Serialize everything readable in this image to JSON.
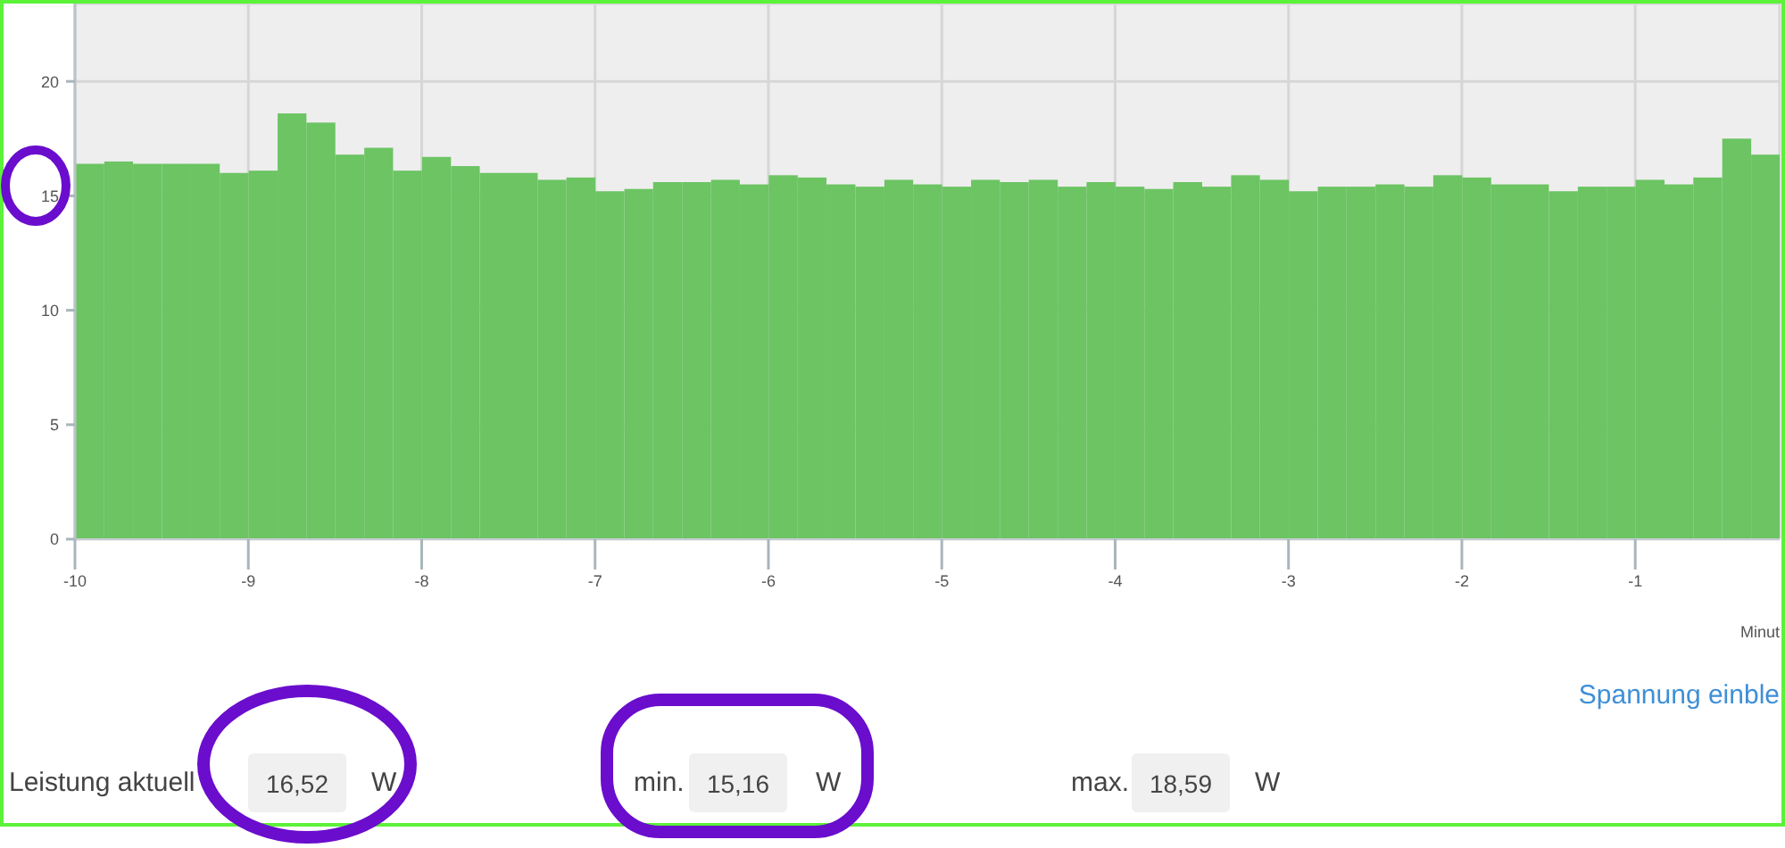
{
  "chart_data": {
    "type": "histogram",
    "bins": [
      -10,
      -9.833,
      -9.667,
      -9.5,
      -9.333,
      -9.167,
      -9,
      -8.833,
      -8.667,
      -8.5,
      -8.333,
      -8.167,
      -8,
      -7.833,
      -7.667,
      -7.5,
      -7.333,
      -7.167,
      -7,
      -6.833,
      -6.667,
      -6.5,
      -6.333,
      -6.167,
      -6,
      -5.833,
      -5.667,
      -5.5,
      -5.333,
      -5.167,
      -5,
      -4.833,
      -4.667,
      -4.5,
      -4.333,
      -4.167,
      -4,
      -3.833,
      -3.667,
      -3.5,
      -3.333,
      -3.167,
      -3,
      -2.833,
      -2.667,
      -2.5,
      -2.333,
      -2.167,
      -2,
      -1.833,
      -1.667,
      -1.5,
      -1.333,
      -1.167,
      -1,
      -0.833,
      -0.667,
      -0.5,
      -0.333,
      -0.167
    ],
    "values": [
      16.4,
      16.5,
      16.4,
      16.4,
      16.4,
      16.0,
      16.1,
      18.6,
      18.2,
      16.8,
      17.1,
      16.1,
      16.7,
      16.3,
      16.0,
      16.0,
      15.7,
      15.8,
      15.2,
      15.3,
      15.6,
      15.6,
      15.7,
      15.5,
      15.9,
      15.8,
      15.5,
      15.4,
      15.7,
      15.5,
      15.4,
      15.7,
      15.6,
      15.7,
      15.4,
      15.6,
      15.4,
      15.3,
      15.6,
      15.4,
      15.9,
      15.7,
      15.2,
      15.4,
      15.4,
      15.5,
      15.4,
      15.9,
      15.8,
      15.5,
      15.5,
      15.2,
      15.4,
      15.4,
      15.7,
      15.5,
      15.8,
      17.5,
      16.8
    ],
    "color": "#6cc463",
    "xlim": [
      -10,
      -0.167
    ],
    "xticks": [
      -10,
      -9,
      -8,
      -7,
      -6,
      -5,
      -4,
      -3,
      -2,
      -1
    ],
    "ylim": [
      0,
      23.4
    ],
    "yticks": [
      0,
      5,
      10,
      15,
      20
    ],
    "xlabel": "Minut",
    "grid": true,
    "annotations": [
      "Spannung einble",
      "Leistung aktuell",
      "16,52",
      "W",
      "min.",
      "15,16",
      "W",
      "max.",
      "18,59",
      "W"
    ]
  }
}
